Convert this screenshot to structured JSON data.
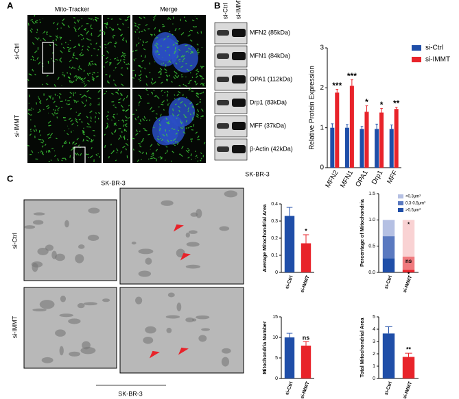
{
  "panel_a": {
    "letter": "A",
    "columns": [
      "Mito-Tracker",
      "Merge"
    ],
    "rows": [
      "si-Ctrl",
      "si-IMMT"
    ],
    "caption": "SK-BR-3"
  },
  "panel_b": {
    "letter": "B",
    "lanes": [
      "si-Ctrl",
      "si-IMMT"
    ],
    "bands": [
      "MFN2 (85kDa)",
      "MFN1 (84kDa)",
      "OPA1 (112kDa)",
      "Drp1 (83kDa)",
      "MFF (37kDa)",
      "β-Actin (42kDa)"
    ],
    "caption": "SK-BR-3"
  },
  "panel_c": {
    "letter": "C",
    "rows": [
      "si-Ctrl",
      "si-IMMT"
    ],
    "caption": "SK-BR-3"
  },
  "chart_data": [
    {
      "type": "bar",
      "ylabel": "Relative Protein Expression",
      "categories": [
        "MFN2",
        "MFN1",
        "OPA1",
        "Drp1",
        "MFF"
      ],
      "series": [
        {
          "name": "si-Ctrl",
          "color": "#1f4ea8",
          "values": [
            1,
            1,
            0.97,
            0.97,
            0.97
          ],
          "errors": [
            0.1,
            0.08,
            0.06,
            0.12,
            0.1
          ],
          "annotations": [
            null,
            null,
            null,
            null,
            null
          ]
        },
        {
          "name": "si-IMMT",
          "color": "#e8232a",
          "values": [
            1.88,
            2.05,
            1.4,
            1.38,
            1.47
          ],
          "errors": [
            0.08,
            0.15,
            0.15,
            0.1,
            0.04
          ],
          "annotations": [
            "***",
            "***",
            "*",
            "*",
            "**"
          ]
        }
      ],
      "ylim": [
        0,
        3
      ],
      "yticks": [
        0,
        1,
        2,
        3
      ],
      "legend": "right"
    },
    {
      "type": "bar",
      "ylabel": "Average Mitochondrial Area",
      "categories": [
        "si-Ctrl",
        "si-IMMT"
      ],
      "series": [
        {
          "colors": [
            "#1f4ea8",
            "#e8232a"
          ],
          "values": [
            0.33,
            0.17
          ],
          "errors": [
            0.05,
            0.05
          ],
          "annotations": [
            null,
            "*"
          ]
        }
      ],
      "ylim": [
        0,
        0.4
      ],
      "yticks": [
        0,
        0.1,
        0.2,
        0.3,
        0.4
      ]
    },
    {
      "type": "stacked_bar",
      "ylabel": "Percentage of Mitochondria",
      "categories": [
        "si-Ctrl",
        "si-IMMT"
      ],
      "series": [
        {
          "name": ">0.5μm²",
          "colors": [
            "#1f4ea8",
            "#e8232a"
          ],
          "values": [
            0.27,
            0.05
          ],
          "annotations": [
            null,
            "*"
          ]
        },
        {
          "name": "0.3-0.5μm²",
          "colors": [
            "#5a79c0",
            "#f07a7e"
          ],
          "values": [
            0.42,
            0.25
          ],
          "annotations": [
            null,
            "ns"
          ]
        },
        {
          "name": "<0.3μm²",
          "colors": [
            "#b5c0e3",
            "#f9d2d3"
          ],
          "values": [
            0.31,
            0.7
          ],
          "annotations": [
            null,
            "*"
          ]
        }
      ],
      "ylim": [
        0,
        1.5
      ],
      "yticks": [
        {
          "value": 0,
          "label": "0.0"
        },
        0.5,
        {
          "value": 1,
          "label": "1.0"
        },
        1.5
      ],
      "legend": "upper right"
    },
    {
      "type": "bar",
      "ylabel": "Mitochondria Number",
      "categories": [
        "si-Ctrl",
        "si-IMMT"
      ],
      "series": [
        {
          "colors": [
            "#1f4ea8",
            "#e8232a"
          ],
          "values": [
            10,
            8
          ],
          "errors": [
            1,
            1
          ],
          "annotations": [
            null,
            "ns"
          ]
        }
      ],
      "ylim": [
        0,
        15
      ],
      "yticks": [
        0,
        5,
        10,
        15
      ]
    },
    {
      "type": "bar",
      "ylabel": "Total Mitochondrial Area",
      "categories": [
        "si-Ctrl",
        "si-IMMT"
      ],
      "series": [
        {
          "colors": [
            "#1f4ea8",
            "#e8232a"
          ],
          "values": [
            3.65,
            1.75
          ],
          "errors": [
            0.55,
            0.3
          ],
          "annotations": [
            null,
            "**"
          ]
        }
      ],
      "ylim": [
        0,
        5
      ],
      "yticks": [
        0,
        1,
        2,
        3,
        4,
        5
      ]
    }
  ]
}
